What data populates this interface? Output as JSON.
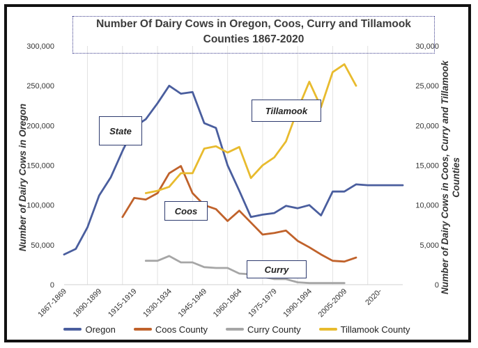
{
  "chart_data": {
    "type": "line",
    "title": "Number Of Dairy Cows in Oregon, Coos, Curry and Tillamook Counties 1867-2020",
    "title_lines": [
      "Number Of Dairy Cows in Oregon, Coos, Curry and Tillamook",
      "Counties 1867-2020"
    ],
    "ylabel_left": "Number of Dairy Cows in Oregon",
    "ylabel_right": "Number of Dairy Cows in Coos, Curry and Tillamook Counties",
    "ylim_left": [
      0,
      300000
    ],
    "ylim_right": [
      0,
      30000
    ],
    "yticks_left": [
      "0",
      "50,000",
      "100,000",
      "150,000",
      "200,000",
      "250,000",
      "300,000"
    ],
    "yticks_right": [
      "0",
      "5,000",
      "10,000",
      "15,000",
      "20,000",
      "25,000",
      "30,000"
    ],
    "categories": [
      "1867-1869",
      "1890-1899",
      "1915-1919",
      "1930-1934",
      "1945-1949",
      "1960-1964",
      "1975-1979",
      "1990-1994",
      "2005-2009",
      "2020-"
    ],
    "series": [
      {
        "name": "Oregon",
        "axis": "left",
        "color": "#4a5e9e",
        "x": [
          0,
          1,
          2,
          3,
          4,
          5,
          6,
          7,
          8,
          9,
          10,
          11,
          12,
          13,
          14,
          15,
          16,
          17,
          18,
          19,
          20,
          21,
          22,
          23,
          24,
          25,
          26,
          27,
          28,
          29
        ],
        "values": [
          38000,
          45000,
          72000,
          112000,
          135000,
          168000,
          198000,
          208000,
          228000,
          250000,
          240000,
          242000,
          203000,
          197000,
          150000,
          118000,
          85000,
          88000,
          90000,
          99000,
          96000,
          100000,
          87000,
          117000,
          117000,
          126000,
          125000,
          125000,
          125000,
          125000
        ]
      },
      {
        "name": "Coos County",
        "axis": "right",
        "color": "#c0622b",
        "x": [
          5,
          6,
          7,
          8,
          9,
          10,
          11,
          12,
          13,
          14,
          15,
          16,
          17,
          18,
          19,
          20,
          21,
          22,
          23,
          24,
          25
        ],
        "values": [
          8500,
          10900,
          10700,
          11500,
          14000,
          14900,
          11500,
          10000,
          9500,
          8000,
          9300,
          7800,
          6300,
          6500,
          6800,
          5500,
          4700,
          3800,
          3000,
          2900,
          3400
        ]
      },
      {
        "name": "Curry County",
        "axis": "right",
        "color": "#a6a6a6",
        "x": [
          7,
          8,
          9,
          10,
          11,
          12,
          13,
          14,
          15,
          16,
          17,
          18,
          19,
          20,
          21,
          22,
          23,
          24
        ],
        "values": [
          3000,
          3000,
          3600,
          2800,
          2800,
          2200,
          2100,
          2100,
          1400,
          1300,
          1000,
          700,
          700,
          300,
          200,
          200,
          200,
          200
        ]
      },
      {
        "name": "Tillamook County",
        "axis": "right",
        "color": "#e8bb2e",
        "x": [
          7,
          8,
          9,
          10,
          11,
          12,
          13,
          14,
          15,
          16,
          17,
          18,
          19,
          20,
          21,
          22,
          23,
          24,
          25
        ],
        "values": [
          11500,
          11800,
          12300,
          14000,
          14000,
          17100,
          17400,
          16600,
          17300,
          13400,
          15000,
          16000,
          18000,
          22000,
          25500,
          22300,
          26700,
          27700,
          25000
        ]
      }
    ],
    "annotations": [
      "State",
      "Tillamook",
      "Coos",
      "Curry"
    ],
    "legend_position": "bottom"
  }
}
